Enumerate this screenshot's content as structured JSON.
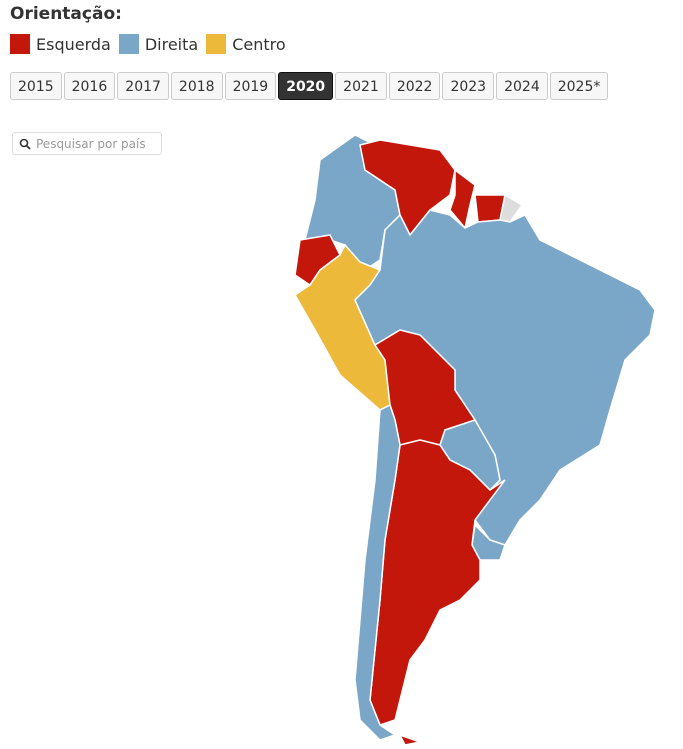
{
  "title": "Orientação:",
  "legend": [
    {
      "label": "Esquerda",
      "color": "#c4170c"
    },
    {
      "label": "Direita",
      "color": "#7aa6c8"
    },
    {
      "label": "Centro",
      "color": "#ecb93b"
    }
  ],
  "years": [
    "2015",
    "2016",
    "2017",
    "2018",
    "2019",
    "2020",
    "2021",
    "2022",
    "2023",
    "2024",
    "2025*"
  ],
  "selected_year": "2020",
  "search_placeholder": "Pesquisar por país"
}
